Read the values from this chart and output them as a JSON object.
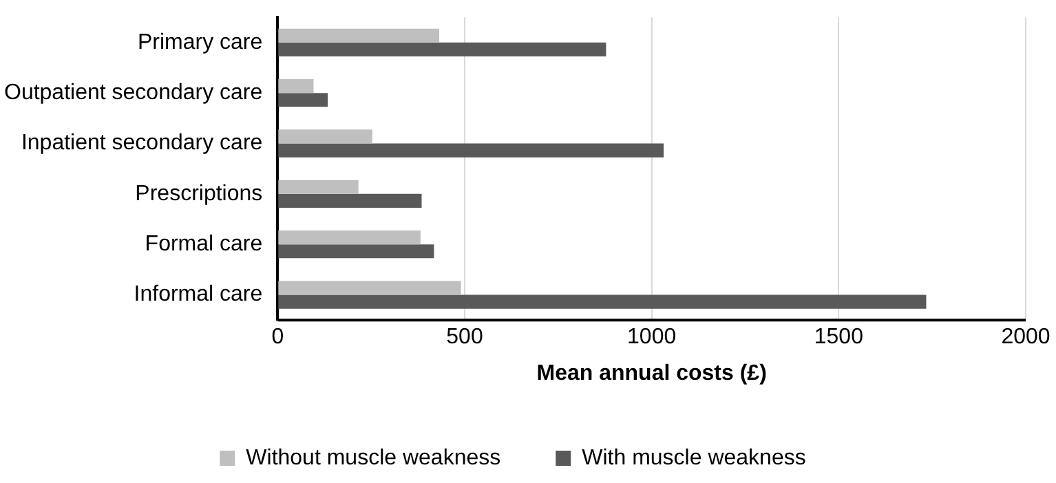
{
  "chart_data": {
    "type": "bar",
    "orientation": "horizontal",
    "xlabel": "Mean annual costs (£)",
    "categories": [
      "Primary care",
      "Outpatient secondary care",
      "Inpatient secondary care",
      "Prescriptions",
      "Formal care",
      "Informal care"
    ],
    "series": [
      {
        "name": "Without muscle weakness",
        "color": "#bfbfbf",
        "values": [
          432,
          96,
          253,
          216,
          382,
          490
        ]
      },
      {
        "name": "With muscle weakness",
        "color": "#595959",
        "values": [
          878,
          134,
          1032,
          385,
          418,
          1734
        ]
      }
    ],
    "xlim": [
      0,
      2000
    ],
    "xticks": [
      0,
      500,
      1000,
      1500,
      2000
    ],
    "grid": "x",
    "legend": "bottom"
  }
}
